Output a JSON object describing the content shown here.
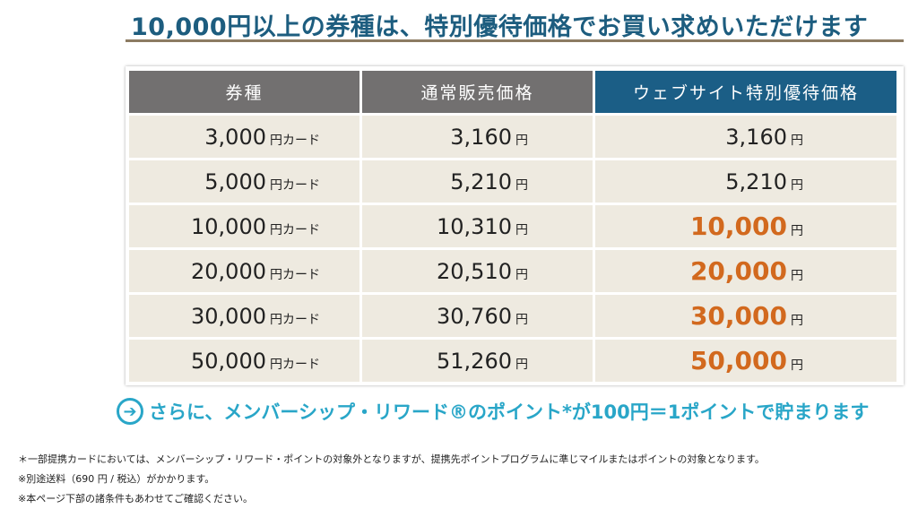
{
  "title": "10,000円以上の券種は、特別優待価格でお買い求めいただけます",
  "table": {
    "headers": [
      "券種",
      "通常販売価格",
      "ウェブサイト特別優待価格"
    ],
    "rows": [
      {
        "card": "3,000",
        "card_unit": "円カード",
        "regular": "3,160",
        "regular_unit": "円",
        "special": "3,160",
        "special_unit": "円",
        "highlight": false
      },
      {
        "card": "5,000",
        "card_unit": "円カード",
        "regular": "5,210",
        "regular_unit": "円",
        "special": "5,210",
        "special_unit": "円",
        "highlight": false
      },
      {
        "card": "10,000",
        "card_unit": "円カード",
        "regular": "10,310",
        "regular_unit": "円",
        "special": "10,000",
        "special_unit": "円",
        "highlight": true
      },
      {
        "card": "20,000",
        "card_unit": "円カード",
        "regular": "20,510",
        "regular_unit": "円",
        "special": "20,000",
        "special_unit": "円",
        "highlight": true
      },
      {
        "card": "30,000",
        "card_unit": "円カード",
        "regular": "30,760",
        "regular_unit": "円",
        "special": "30,000",
        "special_unit": "円",
        "highlight": true
      },
      {
        "card": "50,000",
        "card_unit": "円カード",
        "regular": "51,260",
        "regular_unit": "円",
        "special": "50,000",
        "special_unit": "円",
        "highlight": true
      }
    ]
  },
  "promo": {
    "icon": "arrow-right-circle-icon",
    "text": "さらに、メンバーシップ・リワード®のポイント*が100円＝1ポイントで貯まります"
  },
  "notes": [
    "＊一部提携カードにおいては、メンバーシップ・リワード・ポイントの対象外となりますが、提携先ポイントプログラムに準じマイルまたはポイントの対象となります。",
    "※別途送料（690 円 / 税込）がかかります。",
    "※本ページ下部の諸条件もあわせてご確認ください。"
  ],
  "colors": {
    "title": "#1d5d7f",
    "header_gray": "#727070",
    "header_blue": "#1b5e86",
    "row_bg": "#eeeae0",
    "highlight": "#d2691e",
    "promo": "#29a6c8"
  }
}
